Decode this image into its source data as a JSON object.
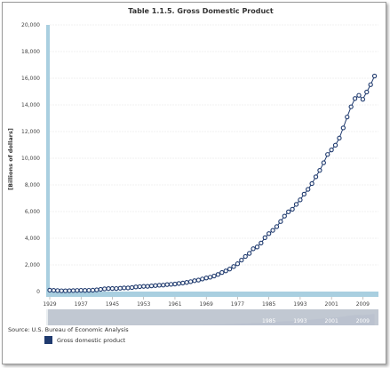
{
  "chart_data": {
    "type": "line",
    "title": "Table 1.1.5. Gross Domestic Product",
    "ylabel": "[Billions of dollars]",
    "xlabel": "",
    "ylim": [
      0,
      20000
    ],
    "xlim": [
      1929,
      2013
    ],
    "yticks": [
      "0",
      "2,000",
      "4,000",
      "6,000",
      "8,000",
      "10,000",
      "12,000",
      "14,000",
      "16,000",
      "18,000",
      "20,000"
    ],
    "xticks": [
      "1929",
      "1937",
      "1945",
      "1953",
      "1961",
      "1969",
      "1977",
      "1985",
      "1993",
      "2001",
      "2009"
    ],
    "grid": true,
    "legend_position": "bottom-left",
    "series": [
      {
        "name": "Gross domestic product",
        "color": "#1f3a6e",
        "x": [
          1929,
          1930,
          1931,
          1932,
          1933,
          1934,
          1935,
          1936,
          1937,
          1938,
          1939,
          1940,
          1941,
          1942,
          1943,
          1944,
          1945,
          1946,
          1947,
          1948,
          1949,
          1950,
          1951,
          1952,
          1953,
          1954,
          1955,
          1956,
          1957,
          1958,
          1959,
          1960,
          1961,
          1962,
          1963,
          1964,
          1965,
          1966,
          1967,
          1968,
          1969,
          1970,
          1971,
          1972,
          1973,
          1974,
          1975,
          1976,
          1977,
          1978,
          1979,
          1980,
          1981,
          1982,
          1983,
          1984,
          1985,
          1986,
          1987,
          1988,
          1989,
          1990,
          1991,
          1992,
          1993,
          1994,
          1995,
          1996,
          1997,
          1998,
          1999,
          2000,
          2001,
          2002,
          2003,
          2004,
          2005,
          2006,
          2007,
          2008,
          2009,
          2010,
          2011,
          2012
        ],
        "values": [
          105,
          92,
          77,
          60,
          57,
          67,
          74,
          85,
          93,
          87,
          93,
          103,
          129,
          166,
          203,
          225,
          228,
          227,
          250,
          275,
          272,
          300,
          347,
          368,
          389,
          391,
          425,
          449,
          474,
          481,
          522,
          543,
          563,
          605,
          638,
          686,
          744,
          815,
          862,
          943,
          1020,
          1076,
          1168,
          1282,
          1429,
          1549,
          1689,
          1878,
          2086,
          2357,
          2632,
          2862,
          3211,
          3345,
          3638,
          4041,
          4347,
          4590,
          4870,
          5253,
          5658,
          5980,
          6174,
          6539,
          6879,
          7309,
          7664,
          8100,
          8609,
          9089,
          9661,
          10285,
          10622,
          10978,
          11511,
          12275,
          13094,
          13856,
          14478,
          14719,
          14419,
          14964,
          15518,
          16163
        ]
      }
    ],
    "navigator_ticks": [
      "1985",
      "1993",
      "2001",
      "2009"
    ]
  },
  "source_text": "Source: U.S. Bureau of Economic Analysis",
  "legend": {
    "label": "Gross domestic product",
    "color": "#1f3a6e"
  }
}
